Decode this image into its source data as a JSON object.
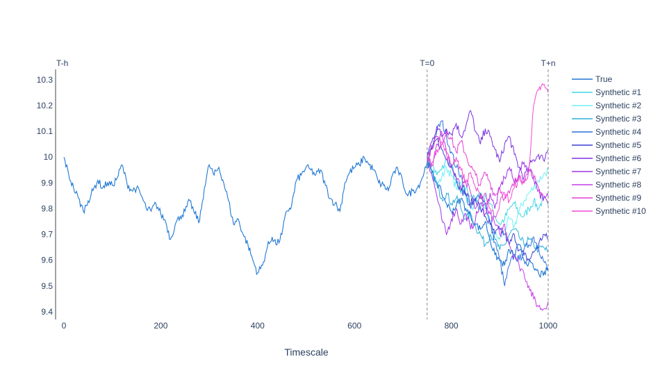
{
  "chart_data": {
    "type": "line",
    "xlabel": "Timescale",
    "ylabel": "",
    "xlim": [
      0,
      1000
    ],
    "ylim": [
      9.37,
      10.34
    ],
    "x_ticks": [
      0,
      200,
      400,
      600,
      800,
      1000
    ],
    "y_ticks": [
      9.4,
      9.5,
      9.6,
      9.7,
      9.8,
      9.9,
      10,
      10.1,
      10.2,
      10.3
    ],
    "y_tick_labels": [
      "9.4",
      "9.5",
      "9.6",
      "9.7",
      "9.8",
      "9.9",
      "10",
      "10.1",
      "10.2",
      "10.3"
    ],
    "grid": false,
    "legend_position": "right",
    "markers": [
      {
        "x": 0,
        "label": "T-h",
        "dashed": false
      },
      {
        "x": 750,
        "label": "T=0",
        "dashed": true
      },
      {
        "x": 1000,
        "label": "T+n",
        "dashed": true
      }
    ],
    "true_series": {
      "name": "True",
      "color": "#1f77d4",
      "x": [
        0,
        10,
        20,
        30,
        40,
        50,
        60,
        70,
        80,
        90,
        100,
        110,
        120,
        130,
        140,
        150,
        160,
        170,
        180,
        190,
        200,
        210,
        220,
        230,
        240,
        250,
        260,
        270,
        280,
        290,
        300,
        310,
        320,
        330,
        340,
        350,
        360,
        370,
        380,
        390,
        400,
        410,
        420,
        430,
        440,
        450,
        460,
        470,
        480,
        490,
        500,
        510,
        520,
        530,
        540,
        550,
        560,
        570,
        580,
        590,
        600,
        610,
        620,
        630,
        640,
        650,
        660,
        670,
        680,
        690,
        700,
        710,
        720,
        730,
        740,
        750,
        760,
        770,
        780,
        790,
        800,
        810,
        820,
        830,
        840,
        850,
        860,
        870,
        880,
        890,
        900,
        910,
        920,
        930,
        940,
        950,
        960,
        970,
        980,
        990,
        1000
      ],
      "values": [
        10.0,
        9.93,
        9.88,
        9.84,
        9.79,
        9.83,
        9.87,
        9.91,
        9.88,
        9.9,
        9.89,
        9.92,
        9.97,
        9.9,
        9.87,
        9.88,
        9.85,
        9.8,
        9.79,
        9.82,
        9.78,
        9.75,
        9.68,
        9.74,
        9.77,
        9.79,
        9.83,
        9.78,
        9.75,
        9.88,
        9.97,
        9.93,
        9.96,
        9.9,
        9.83,
        9.74,
        9.76,
        9.7,
        9.66,
        9.6,
        9.55,
        9.58,
        9.65,
        9.69,
        9.66,
        9.7,
        9.79,
        9.81,
        9.91,
        9.93,
        9.96,
        9.95,
        9.93,
        9.95,
        9.89,
        9.84,
        9.82,
        9.79,
        9.9,
        9.94,
        9.96,
        9.97,
        10.0,
        9.97,
        9.95,
        9.9,
        9.89,
        9.87,
        9.94,
        9.95,
        9.9,
        9.85,
        9.87,
        9.88,
        9.92,
        9.98,
        9.94,
        9.9,
        9.86,
        9.82,
        9.79,
        9.81,
        9.84,
        9.8,
        9.77,
        9.74,
        9.72,
        9.75,
        9.68,
        9.62,
        9.6,
        9.58,
        9.64,
        9.62,
        9.66,
        9.6,
        9.59,
        9.57,
        9.55,
        9.54,
        9.57
      ]
    },
    "synthetic_x": [
      750,
      760,
      770,
      780,
      790,
      800,
      810,
      820,
      830,
      840,
      850,
      860,
      870,
      880,
      890,
      900,
      910,
      920,
      930,
      940,
      950,
      960,
      970,
      980,
      990,
      1000
    ],
    "series": [
      {
        "name": "Synthetic #1",
        "color": "#3fd6e6",
        "values": [
          9.99,
          9.97,
          9.93,
          9.95,
          9.99,
          9.97,
          9.9,
          9.86,
          9.88,
          9.85,
          9.83,
          9.8,
          9.85,
          9.82,
          9.77,
          9.74,
          9.76,
          9.8,
          9.82,
          9.78,
          9.77,
          9.8,
          9.83,
          9.8,
          9.84,
          9.81
        ]
      },
      {
        "name": "Synthetic #2",
        "color": "#6ff0f5",
        "values": [
          10.0,
          9.95,
          9.89,
          9.92,
          9.96,
          9.93,
          9.88,
          9.9,
          9.85,
          9.8,
          9.83,
          9.86,
          9.8,
          9.75,
          9.7,
          9.68,
          9.72,
          9.76,
          9.73,
          9.79,
          9.83,
          9.86,
          9.88,
          9.91,
          9.93,
          9.95
        ]
      },
      {
        "name": "Synthetic #3",
        "color": "#2bb0d8",
        "values": [
          9.99,
          9.94,
          9.9,
          9.84,
          9.86,
          9.82,
          9.84,
          9.8,
          9.76,
          9.78,
          9.73,
          9.7,
          9.66,
          9.7,
          9.68,
          9.64,
          9.66,
          9.7,
          9.72,
          9.69,
          9.66,
          9.68,
          9.66,
          9.64,
          9.65,
          9.63
        ]
      },
      {
        "name": "Synthetic #4",
        "color": "#2f6fdb",
        "values": [
          10.0,
          10.04,
          10.1,
          10.14,
          10.08,
          10.02,
          9.96,
          9.93,
          9.85,
          9.8,
          9.83,
          9.86,
          9.82,
          9.74,
          9.67,
          9.6,
          9.5,
          9.58,
          9.62,
          9.6,
          9.64,
          9.66,
          9.69,
          9.65,
          9.6,
          9.56
        ]
      },
      {
        "name": "Synthetic #5",
        "color": "#3b3fd1",
        "values": [
          9.98,
          10.03,
          10.07,
          10.03,
          9.99,
          9.97,
          9.92,
          9.87,
          9.86,
          9.82,
          9.84,
          9.8,
          9.77,
          9.74,
          9.7,
          9.72,
          9.7,
          9.66,
          9.7,
          9.64,
          9.62,
          9.6,
          9.63,
          9.66,
          9.7,
          9.68
        ]
      },
      {
        "name": "Synthetic #6",
        "color": "#7a30e0",
        "values": [
          10.01,
          10.06,
          10.12,
          10.08,
          10.11,
          10.09,
          10.13,
          10.08,
          10.12,
          10.18,
          10.1,
          10.05,
          10.11,
          10.08,
          10.03,
          9.98,
          10.05,
          10.08,
          10.01,
          9.96,
          9.92,
          9.96,
          9.99,
          10.01,
          9.99,
          10.03
        ]
      },
      {
        "name": "Synthetic #7",
        "color": "#a234e6",
        "values": [
          10.0,
          9.93,
          9.85,
          9.76,
          9.7,
          9.76,
          9.8,
          9.74,
          9.78,
          9.72,
          9.76,
          9.82,
          9.78,
          9.86,
          9.8,
          9.88,
          9.92,
          9.96,
          9.9,
          9.94,
          9.98,
          9.95,
          9.92,
          9.87,
          9.83,
          9.85
        ]
      },
      {
        "name": "Synthetic #8",
        "color": "#c43ee6",
        "values": [
          10.0,
          9.98,
          10.05,
          10.1,
          10.02,
          9.96,
          9.92,
          9.88,
          9.9,
          9.86,
          9.8,
          9.84,
          9.82,
          9.78,
          9.74,
          9.7,
          9.74,
          9.66,
          9.62,
          9.58,
          9.55,
          9.5,
          9.45,
          9.42,
          9.41,
          9.44
        ]
      },
      {
        "name": "Synthetic #9",
        "color": "#e040d8",
        "values": [
          9.99,
          10.04,
          10.08,
          10.05,
          10.1,
          10.07,
          10.02,
          10.06,
          10.01,
          9.96,
          9.93,
          9.89,
          9.94,
          9.9,
          9.85,
          9.88,
          9.84,
          9.86,
          9.9,
          9.93,
          9.9,
          9.95,
          9.92,
          9.88,
          9.85,
          9.82
        ]
      },
      {
        "name": "Synthetic #10",
        "color": "#f04ad3",
        "values": [
          10.0,
          9.97,
          10.03,
          10.06,
          10.01,
          9.97,
          10.0,
          9.95,
          9.9,
          9.94,
          9.88,
          9.84,
          9.86,
          9.8,
          9.77,
          9.82,
          9.86,
          9.83,
          9.88,
          9.92,
          9.9,
          9.95,
          10.2,
          10.26,
          10.28,
          10.25
        ]
      }
    ]
  }
}
